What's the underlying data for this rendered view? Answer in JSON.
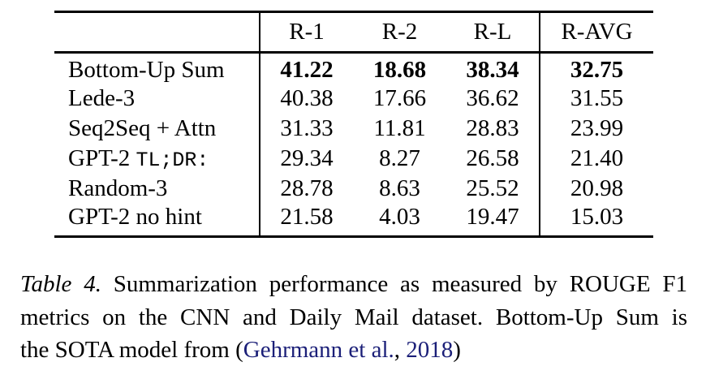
{
  "theme": {
    "link": "#1b1f78",
    "text": "#000000",
    "rule": "#000000",
    "background": "#ffffff"
  },
  "table": {
    "columns": [
      "",
      "R-1",
      "R-2",
      "R-L",
      "R-AVG"
    ],
    "rows": [
      {
        "label": "Bottom-Up Sum",
        "label_mono": "",
        "r1": "41.22",
        "r2": "18.68",
        "rl": "38.34",
        "ravg": "32.75"
      },
      {
        "label": "Lede-3",
        "label_mono": "",
        "r1": "40.38",
        "r2": "17.66",
        "rl": "36.62",
        "ravg": "31.55"
      },
      {
        "label": "Seq2Seq + Attn",
        "label_mono": "",
        "r1": "31.33",
        "r2": "11.81",
        "rl": "28.83",
        "ravg": "23.99"
      },
      {
        "label": "GPT-2 ",
        "label_mono": "TL;DR:",
        "r1": "29.34",
        "r2": "8.27",
        "rl": "26.58",
        "ravg": "21.40"
      },
      {
        "label": "Random-3",
        "label_mono": "",
        "r1": "28.78",
        "r2": "8.63",
        "rl": "25.52",
        "ravg": "20.98"
      },
      {
        "label": "GPT-2 no hint",
        "label_mono": "",
        "r1": "21.58",
        "r2": "4.03",
        "rl": "19.47",
        "ravg": "15.03"
      }
    ]
  },
  "caption": {
    "label_italic": "Table 4.",
    "line1_rest": "Summarization performance as measured by ROUGE F1",
    "line2": "metrics on the CNN and Daily Mail dataset. Bottom-Up Sum is",
    "line3_before": "the SOTA model from (",
    "cite_authors": "Gehrmann et al.",
    "cite_sep": ",",
    "cite_year": "2018",
    "line3_after": ")"
  }
}
